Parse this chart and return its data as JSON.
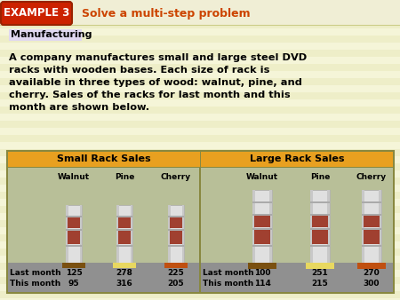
{
  "title_box_text": "EXAMPLE 3",
  "title_text": "Solve a multi-step problem",
  "bg_color": "#FAFAE0",
  "title_box_bg": "#CC2200",
  "title_text_color": "#CC4400",
  "manufacturing_label": "Manufacturing",
  "manufacturing_bg": "#E0D8F0",
  "body_lines": [
    "A company manufactures small and large steel DVD",
    "racks with wooden bases. Each size of rack is",
    "available in three types of wood: walnut, pine, and",
    "cherry. Sales of the racks for last month and this",
    "month are shown below."
  ],
  "table_header_bg": "#E8A020",
  "table_body_bg": "#B8B890",
  "table_floor_bg": "#A0A080",
  "table_wall_bg": "#C0C898",
  "table_border_color": "#888840",
  "small_rack_header": "Small Rack Sales",
  "large_rack_header": "Large Rack Sales",
  "wood_types": [
    "Walnut",
    "Pine",
    "Cherry"
  ],
  "row_labels": [
    "Last month",
    "This month"
  ],
  "small_data": [
    [
      125,
      278,
      225
    ],
    [
      95,
      316,
      205
    ]
  ],
  "large_data": [
    [
      100,
      251,
      270
    ],
    [
      114,
      215,
      300
    ]
  ],
  "rack_base_colors": [
    "#7A5010",
    "#E8D860",
    "#C05010"
  ],
  "stripe_color1": "#F5F5D8",
  "stripe_color2": "#EEEEC8",
  "header_bg": "#F0EED5"
}
